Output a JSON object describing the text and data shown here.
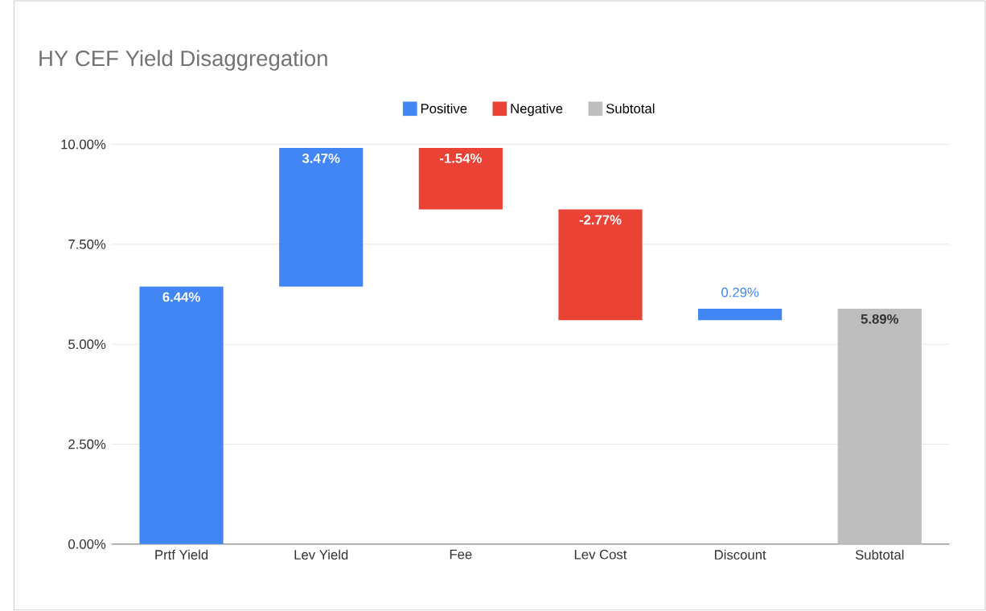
{
  "chart_data": {
    "type": "bar",
    "title": "HY CEF Yield Disaggregation",
    "categories": [
      "Prtf Yield",
      "Lev Yield",
      "Fee",
      "Lev Cost",
      "Discount",
      "Subtotal"
    ],
    "series": [
      {
        "name": "Positive",
        "color": "#4285f4",
        "values": [
          6.44,
          3.47,
          null,
          null,
          0.29,
          null
        ],
        "base": [
          0,
          6.44,
          null,
          null,
          5.6,
          null
        ],
        "value_labels": [
          "6.44%",
          "3.47%",
          null,
          null,
          "0.29%",
          null
        ]
      },
      {
        "name": "Negative",
        "color": "#ea4335",
        "values": [
          null,
          null,
          -1.54,
          -2.77,
          null,
          null
        ],
        "base": [
          null,
          null,
          9.91,
          8.37,
          null,
          null
        ],
        "value_labels": [
          null,
          null,
          "-1.54%",
          "-2.77%",
          null,
          null
        ]
      },
      {
        "name": "Subtotal",
        "color": "#bdbdbd",
        "values": [
          null,
          null,
          null,
          null,
          null,
          5.89
        ],
        "base": [
          null,
          null,
          null,
          null,
          null,
          0
        ],
        "value_labels": [
          null,
          null,
          null,
          null,
          null,
          "5.89%"
        ]
      }
    ],
    "ylim": [
      0,
      10
    ],
    "yticks": [
      {
        "value": 0,
        "label": "0.00%"
      },
      {
        "value": 2.5,
        "label": "2.50%"
      },
      {
        "value": 5,
        "label": "5.00%"
      },
      {
        "value": 7.5,
        "label": "7.50%"
      },
      {
        "value": 10,
        "label": "10.00%"
      }
    ],
    "grid": "y",
    "legend": "top"
  }
}
